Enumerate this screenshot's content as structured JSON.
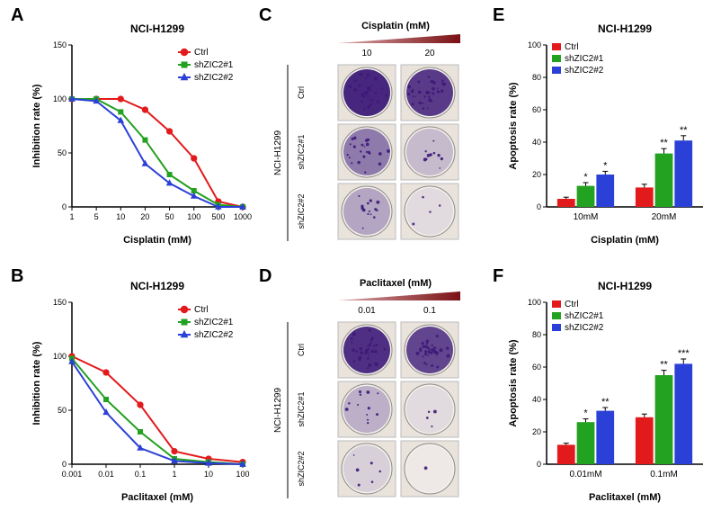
{
  "figure": {
    "cell_line": "NCI-H1299",
    "groups": {
      "ctrl": {
        "label": "Ctrl",
        "color": "#e31a1c",
        "marker": "circle"
      },
      "sh1": {
        "label": "shZIC2#1",
        "color": "#23a121",
        "marker": "square"
      },
      "sh2": {
        "label": "shZIC2#2",
        "color": "#2b40d6",
        "marker": "triangle"
      }
    }
  },
  "panelA": {
    "label": "A",
    "title": "NCI-H1299",
    "type": "line",
    "xlabel": "Cisplatin (mM)",
    "ylabel": "Inhibition rate (%)",
    "xscale": "log",
    "ylim": [
      0,
      150
    ],
    "ytick_step": 50,
    "xticks": [
      1,
      5,
      10,
      20,
      50,
      100,
      500,
      1000
    ],
    "series": {
      "ctrl": [
        100,
        100,
        100,
        90,
        70,
        45,
        5,
        0
      ],
      "sh1": [
        100,
        100,
        88,
        62,
        30,
        15,
        2,
        0
      ],
      "sh2": [
        100,
        98,
        80,
        40,
        22,
        10,
        0,
        0
      ]
    },
    "line_width": 2,
    "marker_size": 5,
    "background": "#ffffff",
    "axis_color": "#000000"
  },
  "panelB": {
    "label": "B",
    "title": "NCI-H1299",
    "type": "line",
    "xlabel": "Paclitaxel (mM)",
    "ylabel": "Inhibition rate (%)",
    "xscale": "log",
    "ylim": [
      0,
      150
    ],
    "ytick_step": 50,
    "xticks": [
      0.001,
      0.01,
      0.1,
      1,
      10,
      100
    ],
    "series": {
      "ctrl": [
        100,
        85,
        55,
        12,
        5,
        2
      ],
      "sh1": [
        98,
        60,
        30,
        5,
        2,
        0
      ],
      "sh2": [
        95,
        48,
        15,
        3,
        1,
        0
      ]
    },
    "line_width": 2,
    "marker_size": 5,
    "background": "#ffffff",
    "axis_color": "#000000"
  },
  "panelC": {
    "label": "C",
    "header": "Cisplatin (mM)",
    "gradient_color_dark": "#7a1115",
    "gradient_color_light": "#d9a5a7",
    "col_labels": [
      "10",
      "20"
    ],
    "row_labels": [
      "Ctrl",
      "shZIC2#1",
      "shZIC2#2"
    ],
    "side_label": "NCI-H1299",
    "density": [
      [
        0.95,
        0.85
      ],
      [
        0.55,
        0.25
      ],
      [
        0.35,
        0.1
      ]
    ],
    "stain_color": "#3d1a78",
    "plate_border": "#8a8a8a",
    "plate_bg": "#e9e3dc"
  },
  "panelD": {
    "label": "D",
    "header": "Paclitaxel (mM)",
    "gradient_color_dark": "#7a1115",
    "gradient_color_light": "#d9a5a7",
    "col_labels": [
      "0.01",
      "0.1"
    ],
    "row_labels": [
      "Ctrl",
      "shZIC2#1",
      "shZIC2#2"
    ],
    "side_label": "NCI-H1299",
    "density": [
      [
        0.9,
        0.8
      ],
      [
        0.3,
        0.1
      ],
      [
        0.15,
        0.03
      ]
    ],
    "stain_color": "#3d1a78",
    "plate_border": "#8a8a8a",
    "plate_bg": "#e9e3dc"
  },
  "panelE": {
    "label": "E",
    "title": "NCI-H1299",
    "type": "bar",
    "xlabel": "Cisplatin (mM)",
    "ylabel": "Apoptosis rate (%)",
    "ylim": [
      0,
      100
    ],
    "ytick_step": 20,
    "groups": [
      "10mM",
      "20mM"
    ],
    "bars": {
      "ctrl": {
        "values": [
          5,
          12
        ],
        "err": [
          1,
          2
        ],
        "sig": [
          "",
          ""
        ]
      },
      "sh1": {
        "values": [
          13,
          33
        ],
        "err": [
          2,
          3
        ],
        "sig": [
          "*",
          "**"
        ]
      },
      "sh2": {
        "values": [
          20,
          41
        ],
        "err": [
          2,
          3
        ],
        "sig": [
          "*",
          "**"
        ]
      }
    },
    "bar_width": 0.25,
    "error_color": "#000000"
  },
  "panelF": {
    "label": "F",
    "title": "NCI-H1299",
    "type": "bar",
    "xlabel": "Paclitaxel (mM)",
    "ylabel": "Apoptosis rate (%)",
    "ylim": [
      0,
      100
    ],
    "ytick_step": 20,
    "groups": [
      "0.01mM",
      "0.1mM"
    ],
    "bars": {
      "ctrl": {
        "values": [
          12,
          29
        ],
        "err": [
          1,
          2
        ],
        "sig": [
          "",
          ""
        ]
      },
      "sh1": {
        "values": [
          26,
          55
        ],
        "err": [
          2,
          3
        ],
        "sig": [
          "*",
          "**"
        ]
      },
      "sh2": {
        "values": [
          33,
          62
        ],
        "err": [
          2,
          3
        ],
        "sig": [
          "**",
          "***"
        ]
      }
    },
    "bar_width": 0.25,
    "error_color": "#000000"
  },
  "typography": {
    "panel_label_fontsize": 20,
    "panel_label_weight": "bold",
    "title_fontsize": 12,
    "axis_label_fontsize": 11,
    "tick_fontsize": 9,
    "legend_fontsize": 10,
    "sig_fontsize": 11
  }
}
